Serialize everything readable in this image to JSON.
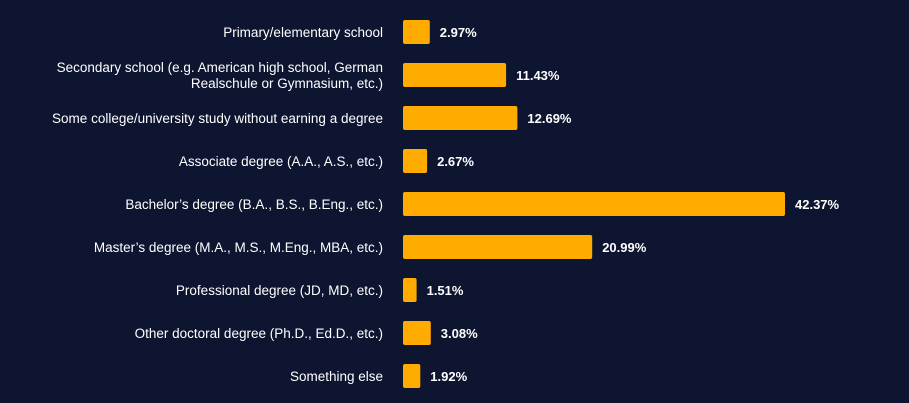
{
  "chart_data": {
    "type": "bar",
    "orientation": "horizontal",
    "categories": [
      "Primary/elementary school",
      "Secondary school (e.g. American high school, German Realschule or Gymnasium, etc.)",
      "Some college/university study without earning a degree",
      "Associate degree (A.A., A.S., etc.)",
      "Bachelor’s degree (B.A., B.S., B.Eng., etc.)",
      "Master’s degree (M.A., M.S., M.Eng., MBA, etc.)",
      "Professional degree (JD, MD, etc.)",
      "Other doctoral degree (Ph.D., Ed.D., etc.)",
      "Something else"
    ],
    "category_lines": [
      [
        "Primary/elementary school"
      ],
      [
        "Secondary school (e.g. American high school, German",
        "Realschule or Gymnasium, etc.)"
      ],
      [
        "Some college/university study without earning a degree"
      ],
      [
        "Associate degree (A.A., A.S., etc.)"
      ],
      [
        "Bachelor’s degree (B.A., B.S., B.Eng., etc.)"
      ],
      [
        "Master’s degree (M.A., M.S., M.Eng., MBA, etc.)"
      ],
      [
        "Professional degree (JD, MD, etc.)"
      ],
      [
        "Other doctoral degree (Ph.D., Ed.D., etc.)"
      ],
      [
        "Something else"
      ]
    ],
    "values": [
      2.97,
      11.43,
      12.69,
      2.67,
      42.37,
      20.99,
      1.51,
      3.08,
      1.92
    ],
    "value_labels": [
      "2.97%",
      "11.43%",
      "12.69%",
      "2.67%",
      "42.37%",
      "20.99%",
      "1.51%",
      "3.08%",
      "1.92%"
    ],
    "title": "",
    "xlabel": "",
    "ylabel": "",
    "xlim": [
      0,
      42.37
    ],
    "grid": false,
    "legend": "none",
    "colors": {
      "background": "#0d1530",
      "bar": "#ffab00",
      "text": "#ffffff"
    }
  }
}
